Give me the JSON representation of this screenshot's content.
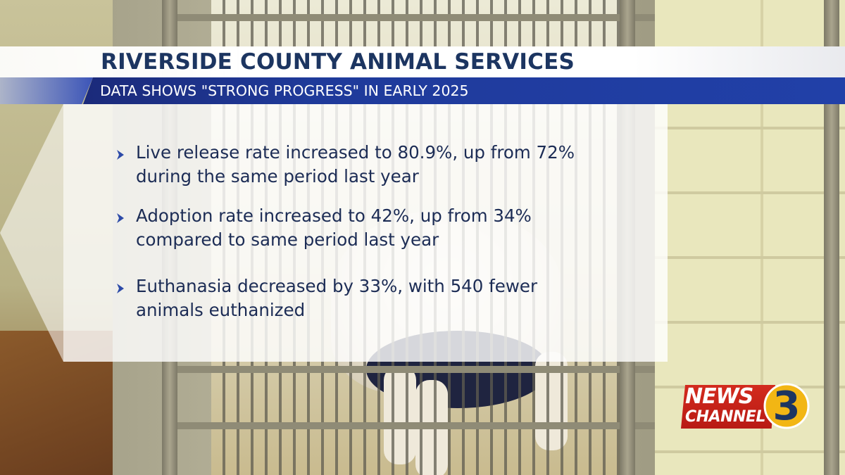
{
  "header": {
    "title": "RIVERSIDE COUNTY ANIMAL SERVICES",
    "subtitle": "DATA SHOWS \"STRONG PROGRESS\" IN EARLY 2025"
  },
  "bullets": [
    {
      "text": "Live release rate increased to 80.9%, up from 72% during the same period last year"
    },
    {
      "text": "Adoption rate increased to 42%, up from 34% compared to same period last year"
    },
    {
      "text": "Euthanasia decreased by 33%, with 540 fewer animals euthanized"
    }
  ],
  "logo": {
    "word1": "NEWS",
    "word2": "CHANNEL",
    "number": "3"
  },
  "colors": {
    "title_text": "#1c3561",
    "subtitle_bar": "#2140a8",
    "bullet_text": "#1c2c55",
    "bullet_chevron": "#2c4aa8",
    "logo_red": "#c8221a",
    "logo_yellow": "#f2b614"
  },
  "icons": {
    "bullet": "chevron-right-icon",
    "logo": "news-channel-3-logo"
  }
}
